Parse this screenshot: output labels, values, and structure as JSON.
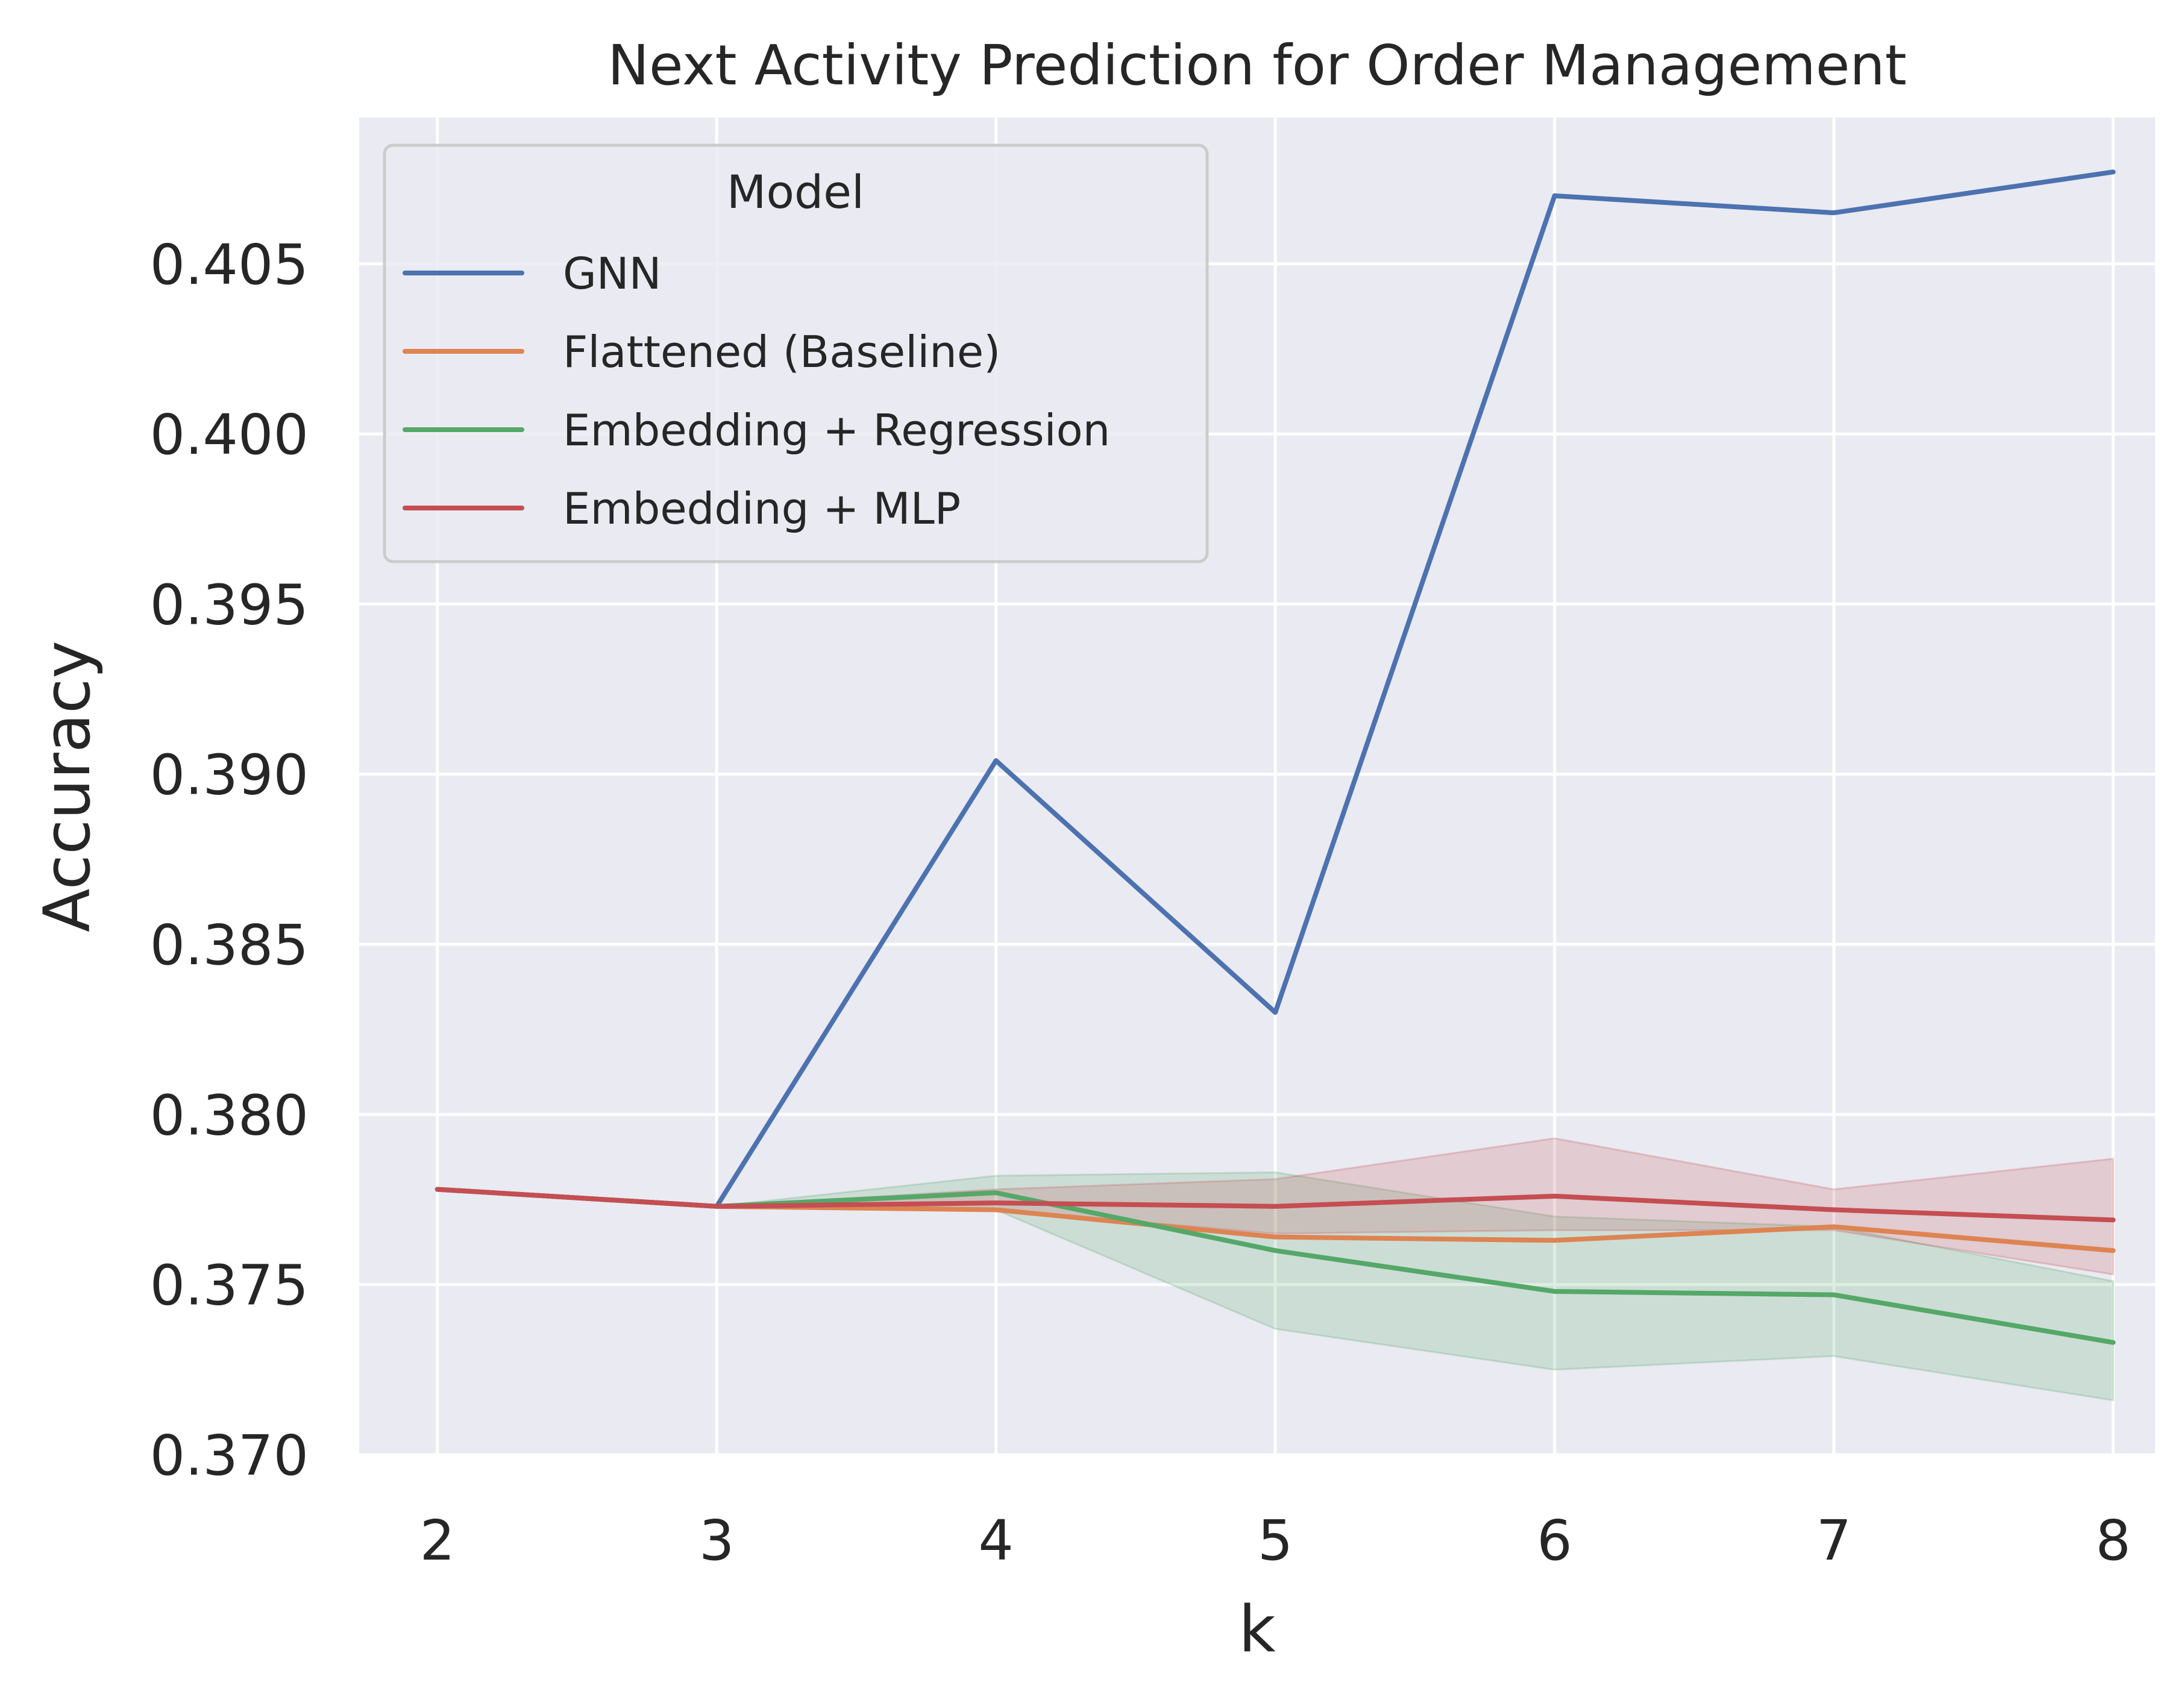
{
  "chart_data": {
    "type": "line",
    "title": "Next Activity Prediction for Order Management",
    "xlabel": "k",
    "ylabel": "Accuracy",
    "x": [
      2,
      3,
      4,
      5,
      6,
      7,
      8
    ],
    "xticks": [
      "2",
      "3",
      "4",
      "5",
      "6",
      "7",
      "8"
    ],
    "xlim": [
      1.72,
      8.15
    ],
    "ylim": [
      0.37,
      0.4093
    ],
    "yticks": [
      0.37,
      0.375,
      0.38,
      0.385,
      0.39,
      0.395,
      0.4,
      0.405
    ],
    "ytick_labels": [
      "0.370",
      "0.375",
      "0.380",
      "0.385",
      "0.390",
      "0.395",
      "0.400",
      "0.405"
    ],
    "grid": true,
    "background": "#eaeaf2",
    "legend_title": "Model",
    "legend_position": "top-left",
    "series": [
      {
        "name": "GNN",
        "color": "#4c72b0",
        "values": [
          0.3778,
          0.3773,
          0.3904,
          0.383,
          0.407,
          0.4065,
          0.4077
        ]
      },
      {
        "name": "Flattened (Baseline)",
        "color": "#dd8452",
        "values": [
          0.3778,
          0.3773,
          0.3772,
          0.3764,
          0.3763,
          0.3767,
          0.376
        ]
      },
      {
        "name": "Embedding + Regression",
        "color": "#55a868",
        "values": [
          0.3778,
          0.3773,
          0.3777,
          0.376,
          0.3748,
          0.3747,
          0.3733
        ],
        "band_lower": [
          0.3778,
          0.3773,
          0.3772,
          0.3737,
          0.3725,
          0.3729,
          0.3716
        ],
        "band_upper": [
          0.3778,
          0.3773,
          0.3782,
          0.3783,
          0.377,
          0.3767,
          0.3751
        ]
      },
      {
        "name": "Embedding + MLP",
        "color": "#c44e52",
        "values": [
          0.3778,
          0.3773,
          0.3774,
          0.3773,
          0.3776,
          0.3772,
          0.3769
        ],
        "band_lower": [
          0.3778,
          0.3773,
          0.3772,
          0.3765,
          0.3766,
          0.3766,
          0.3753
        ],
        "band_upper": [
          0.3778,
          0.3773,
          0.3778,
          0.3781,
          0.3793,
          0.3778,
          0.3787
        ]
      }
    ]
  }
}
